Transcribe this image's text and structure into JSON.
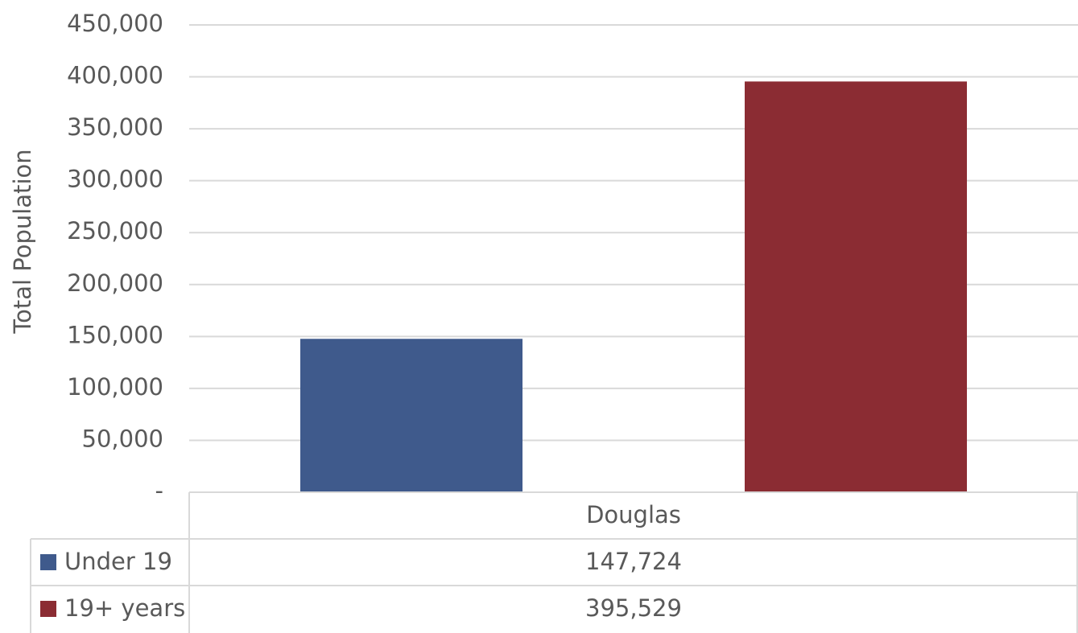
{
  "chart_data": {
    "type": "bar",
    "y_label": "Total Population",
    "categories": [
      "Douglas"
    ],
    "series": [
      {
        "name": "Under 19",
        "color": "#3f5a8c",
        "values": [
          147724
        ],
        "value_labels": [
          "147,724"
        ]
      },
      {
        "name": "19+ years",
        "color": "#8b2c33",
        "values": [
          395529
        ],
        "value_labels": [
          "395,529"
        ]
      }
    ],
    "ylim": [
      0,
      450000
    ],
    "yticks": [
      {
        "value": 0,
        "label": "-"
      },
      {
        "value": 50000,
        "label": "50,000"
      },
      {
        "value": 100000,
        "label": "100,000"
      },
      {
        "value": 150000,
        "label": "150,000"
      },
      {
        "value": 200000,
        "label": "200,000"
      },
      {
        "value": 250000,
        "label": "250,000"
      },
      {
        "value": 300000,
        "label": "300,000"
      },
      {
        "value": 350000,
        "label": "350,000"
      },
      {
        "value": 400000,
        "label": "400,000"
      },
      {
        "value": 450000,
        "label": "450,000"
      }
    ],
    "grid": true
  }
}
